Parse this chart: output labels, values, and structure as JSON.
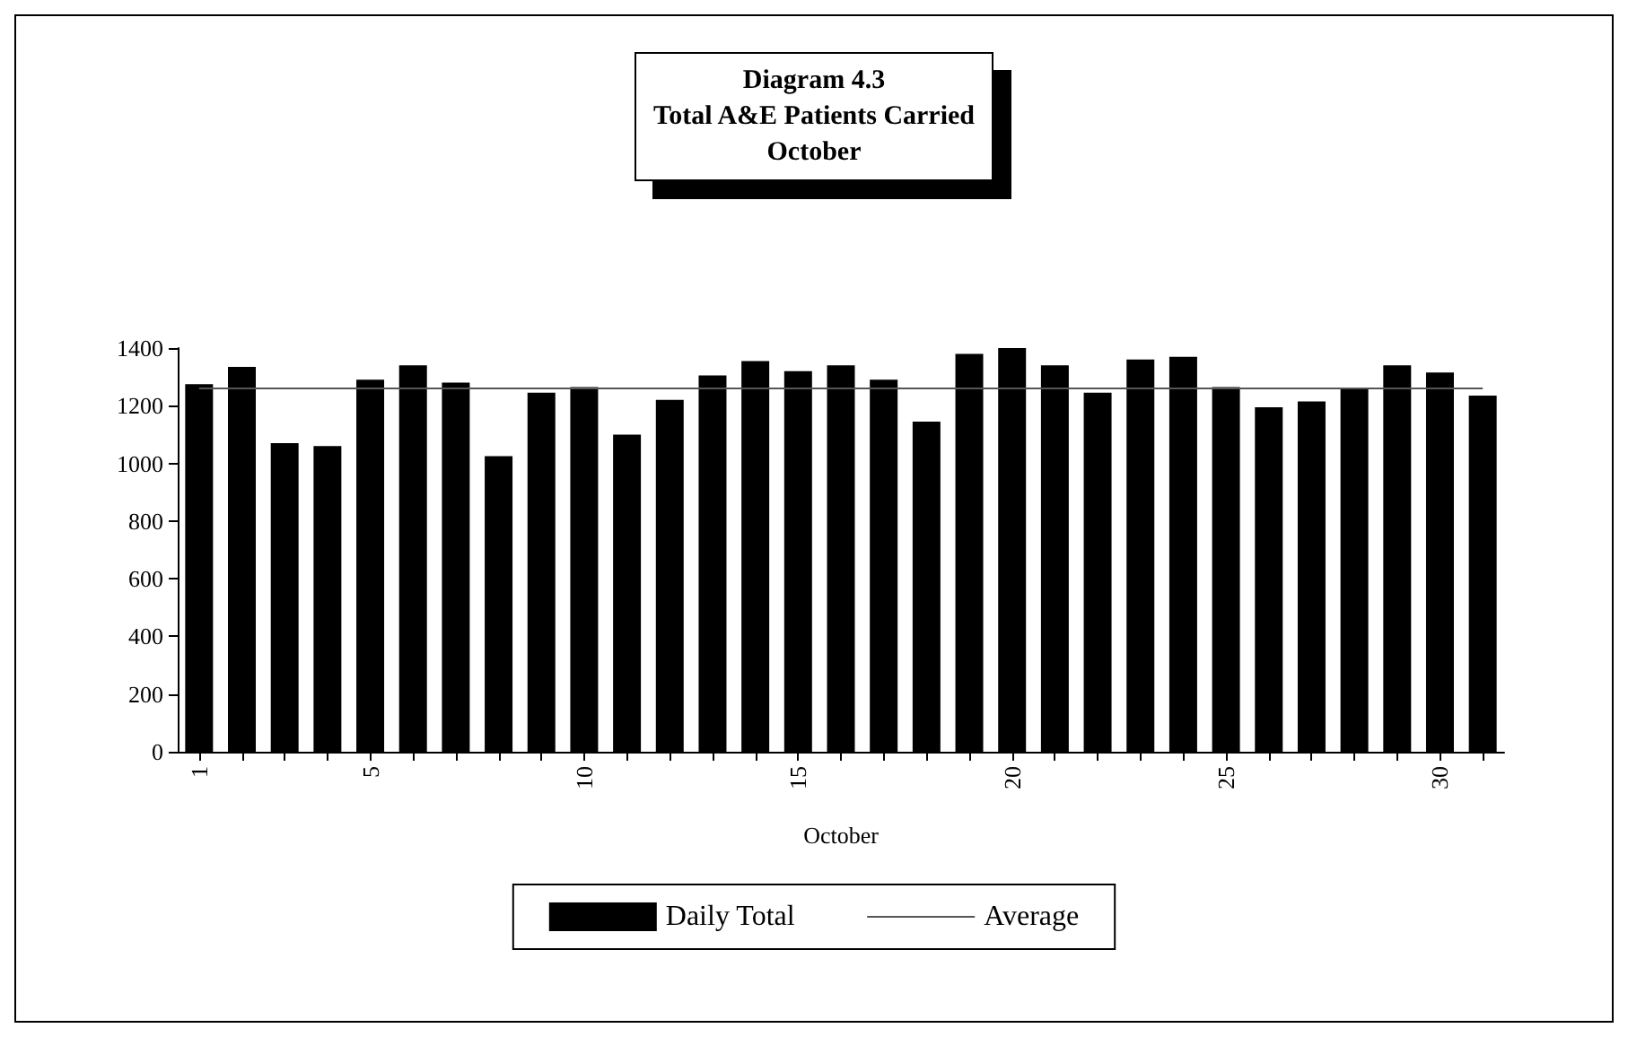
{
  "chart_data": {
    "type": "bar",
    "title": "Diagram 4.3\nTotal A&E Patients Carried\nOctober",
    "xlabel": "October",
    "categories": [
      "1",
      null,
      null,
      null,
      "5",
      null,
      null,
      null,
      null,
      "10",
      null,
      null,
      null,
      null,
      "15",
      null,
      null,
      null,
      null,
      "20",
      null,
      null,
      null,
      null,
      "25",
      null,
      null,
      null,
      null,
      "30",
      null
    ],
    "series": [
      {
        "name": "Daily Total",
        "color": "#000000",
        "values": [
          1275,
          1335,
          1070,
          1060,
          1290,
          1340,
          1280,
          1025,
          1245,
          1265,
          1100,
          1220,
          1305,
          1355,
          1320,
          1340,
          1290,
          1145,
          1380,
          1400,
          1340,
          1245,
          1360,
          1370,
          1265,
          1195,
          1215,
          1260,
          1340,
          1315,
          1235
        ]
      },
      {
        "name": "Average",
        "type": "line",
        "color": "#555555",
        "values": [
          1260,
          1260,
          1260,
          1260,
          1260,
          1260,
          1260,
          1260,
          1260,
          1260,
          1260,
          1260,
          1260,
          1260,
          1260,
          1260,
          1260,
          1260,
          1260,
          1260,
          1260,
          1260,
          1260,
          1260,
          1260,
          1260,
          1260,
          1260,
          1260,
          1260,
          1260
        ]
      }
    ],
    "ylim": [
      0,
      1400
    ],
    "yticks": [
      0,
      200,
      400,
      600,
      800,
      1000,
      1200,
      1400
    ],
    "legend": "bottom"
  }
}
